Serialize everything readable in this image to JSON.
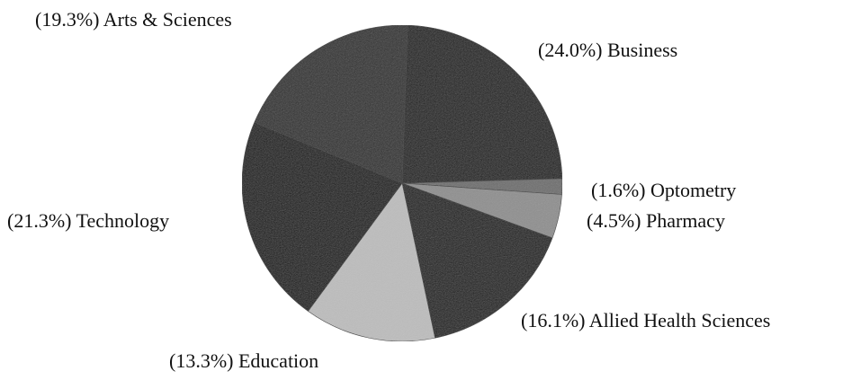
{
  "chart_data": {
    "type": "pie",
    "slices": [
      {
        "label": "Business",
        "value": 24.0,
        "display": "(24.0%) Business",
        "color": "#1d1d1d"
      },
      {
        "label": "Optometry",
        "value": 1.6,
        "display": "(1.6%) Optometry",
        "color": "#6e6e6e"
      },
      {
        "label": "Pharmacy",
        "value": 4.5,
        "display": "(4.5%) Pharmacy",
        "color": "#8f8f8f"
      },
      {
        "label": "Allied Health Sciences",
        "value": 16.1,
        "display": "(16.1%) Allied Health Sciences",
        "color": "#1a1a1a"
      },
      {
        "label": "Education",
        "value": 13.3,
        "display": "(13.3%) Education",
        "color": "#bdbdbd"
      },
      {
        "label": "Technology",
        "value": 21.3,
        "display": "(21.3%) Technology",
        "color": "#181818"
      },
      {
        "label": "Arts & Sciences",
        "value": 19.3,
        "display": "(19.3%) Arts & Sciences",
        "color": "#2e2e2e"
      }
    ],
    "start_angle_deg": 2,
    "direction": "clockwise",
    "legend": "none"
  }
}
